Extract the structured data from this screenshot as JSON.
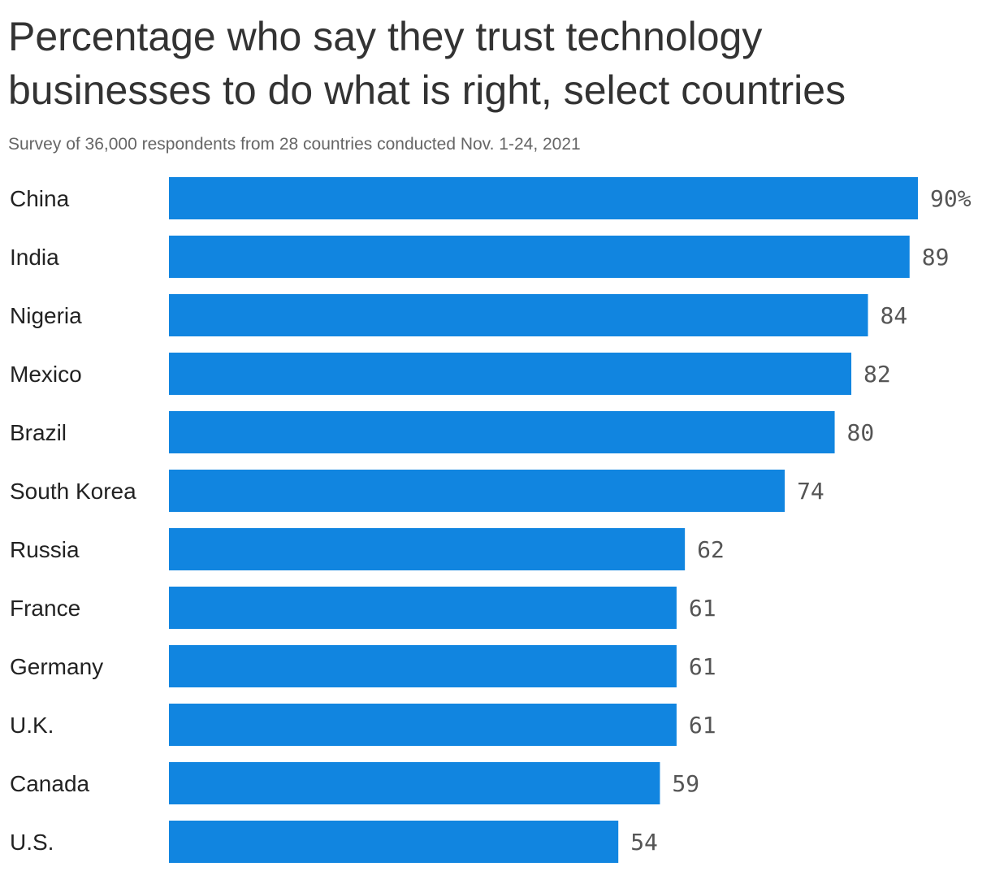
{
  "title": "Percentage who say they trust technology businesses to do what is right, select countries",
  "subtitle": "Survey of 36,000 respondents from 28 countries conducted Nov. 1-24, 2021",
  "colors": {
    "bar": "#1185e0",
    "label": "#222222",
    "value": "#555555"
  },
  "chart_data": {
    "type": "bar",
    "orientation": "horizontal",
    "categories": [
      "China",
      "India",
      "Nigeria",
      "Mexico",
      "Brazil",
      "South Korea",
      "Russia",
      "France",
      "Germany",
      "U.K.",
      "Canada",
      "U.S."
    ],
    "values": [
      90,
      89,
      84,
      82,
      80,
      74,
      62,
      61,
      61,
      61,
      59,
      54
    ],
    "value_labels": [
      "90%",
      "89",
      "84",
      "82",
      "80",
      "74",
      "62",
      "61",
      "61",
      "61",
      "59",
      "54"
    ],
    "xlim": [
      0,
      90
    ],
    "grid": false
  }
}
